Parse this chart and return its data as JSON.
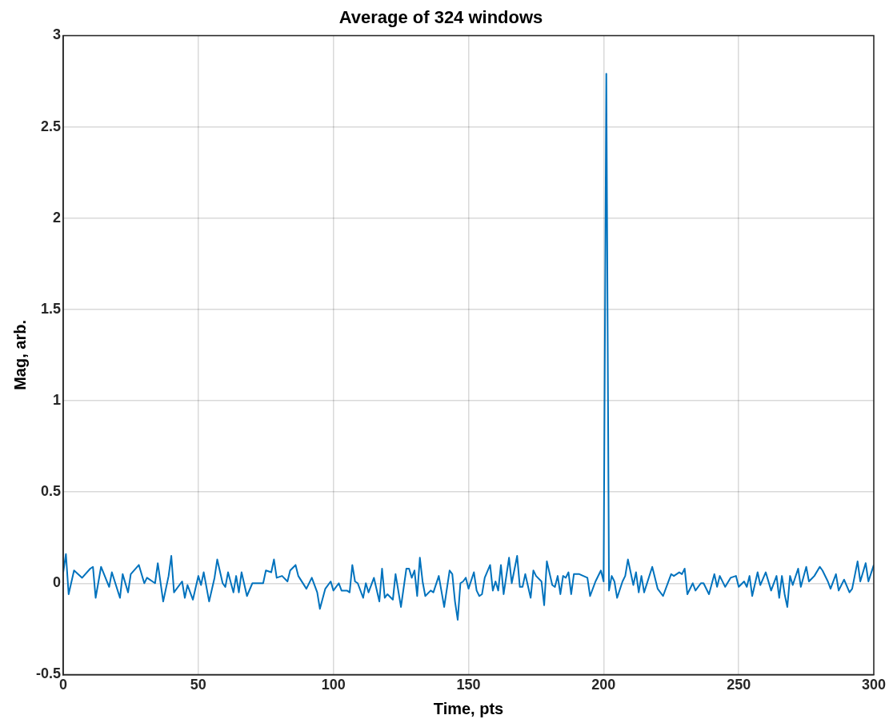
{
  "chart_data": {
    "type": "line",
    "title": "Average of 324 windows",
    "xlabel": "Time, pts",
    "ylabel": "Mag, arb.",
    "x": [
      0,
      1,
      2,
      4,
      7,
      10,
      11,
      12,
      14,
      17,
      18,
      21,
      22,
      24,
      25,
      28,
      30,
      31,
      34,
      35,
      37,
      39,
      40,
      41,
      44,
      45,
      46,
      48,
      50,
      51,
      52,
      54,
      56,
      57,
      59,
      60,
      61,
      63,
      64,
      65,
      66,
      68,
      70,
      74,
      75,
      77,
      78,
      79,
      81,
      83,
      84,
      86,
      87,
      90,
      92,
      94,
      95,
      97,
      99,
      100,
      102,
      103,
      105,
      106,
      107,
      108,
      109,
      111,
      112,
      113,
      115,
      117,
      118,
      119,
      120,
      122,
      123,
      125,
      127,
      128,
      129,
      130,
      131,
      132,
      133,
      134,
      136,
      137,
      139,
      141,
      143,
      144,
      145,
      146,
      147,
      148,
      149,
      150,
      152,
      153,
      154,
      155,
      156,
      158,
      159,
      160,
      161,
      162,
      163,
      165,
      166,
      168,
      169,
      170,
      171,
      173,
      174,
      175,
      177,
      178,
      179,
      181,
      182,
      183,
      184,
      185,
      186,
      187,
      188,
      189,
      191,
      194,
      195,
      197,
      199,
      200,
      201,
      202,
      203,
      204,
      205,
      207,
      208,
      209,
      211,
      212,
      213,
      214,
      215,
      218,
      220,
      222,
      225,
      226,
      228,
      229,
      230,
      231,
      233,
      234,
      236,
      237,
      239,
      241,
      242,
      243,
      245,
      247,
      249,
      250,
      252,
      253,
      254,
      255,
      257,
      258,
      260,
      262,
      264,
      265,
      266,
      267,
      268,
      269,
      270,
      272,
      273,
      275,
      276,
      278,
      280,
      281,
      283,
      284,
      286,
      287,
      289,
      291,
      292,
      294,
      295,
      297,
      298,
      300
    ],
    "values": [
      0.06,
      0.16,
      -0.06,
      0.07,
      0.03,
      0.08,
      0.09,
      -0.08,
      0.09,
      -0.02,
      0.06,
      -0.08,
      0.05,
      -0.05,
      0.05,
      0.1,
      0,
      0.03,
      0,
      0.11,
      -0.1,
      0.04,
      0.15,
      -0.05,
      0.01,
      -0.08,
      -0.01,
      -0.09,
      0.04,
      -0.01,
      0.06,
      -0.1,
      0.03,
      0.13,
      0,
      -0.02,
      0.06,
      -0.05,
      0.04,
      -0.05,
      0.06,
      -0.07,
      0,
      0,
      0.07,
      0.06,
      0.13,
      0.03,
      0.04,
      0.01,
      0.07,
      0.1,
      0.04,
      -0.03,
      0.03,
      -0.05,
      -0.14,
      -0.03,
      0.01,
      -0.04,
      0,
      -0.04,
      -0.04,
      -0.05,
      0.1,
      0.01,
      0,
      -0.08,
      0,
      -0.05,
      0.03,
      -0.1,
      0.08,
      -0.08,
      -0.06,
      -0.09,
      0.05,
      -0.13,
      0.08,
      0.08,
      0.03,
      0.07,
      -0.07,
      0.14,
      0.01,
      -0.07,
      -0.04,
      -0.05,
      0.04,
      -0.13,
      0.07,
      0.05,
      -0.1,
      -0.2,
      0,
      0.01,
      0.03,
      -0.03,
      0.06,
      -0.04,
      -0.07,
      -0.06,
      0.03,
      0.1,
      -0.04,
      0.01,
      -0.04,
      0.1,
      -0.06,
      0.14,
      0,
      0.15,
      -0.02,
      -0.02,
      0.05,
      -0.08,
      0.07,
      0.04,
      0.01,
      -0.12,
      0.12,
      -0.01,
      -0.02,
      0.04,
      -0.06,
      0.04,
      0.03,
      0.06,
      -0.06,
      0.05,
      0.05,
      0.03,
      -0.07,
      0.01,
      0.07,
      0.01,
      2.79,
      -0.04,
      0.04,
      0.01,
      -0.08,
      0.01,
      0.04,
      0.13,
      -0.01,
      0.06,
      -0.05,
      0.04,
      -0.05,
      0.09,
      -0.03,
      -0.07,
      0.05,
      0.04,
      0.06,
      0.05,
      0.08,
      -0.06,
      0,
      -0.04,
      0,
      0,
      -0.06,
      0.05,
      -0.02,
      0.04,
      -0.02,
      0.03,
      0.04,
      -0.02,
      0.01,
      -0.02,
      0.04,
      -0.07,
      0.06,
      -0.01,
      0.06,
      -0.04,
      0.04,
      -0.08,
      0.04,
      -0.06,
      -0.13,
      0.04,
      -0.01,
      0.08,
      -0.02,
      0.09,
      0.01,
      0.04,
      0.09,
      0.07,
      0.01,
      -0.03,
      0.05,
      -0.04,
      0.02,
      -0.05,
      -0.03,
      0.12,
      0.01,
      0.11,
      0.01,
      0.1
    ],
    "color": "#0072bd",
    "xlim": [
      0,
      300
    ],
    "xticks": [
      0,
      50,
      100,
      150,
      200,
      250,
      300
    ],
    "ylim": [
      -0.5,
      3
    ],
    "yticks": [
      -0.5,
      0,
      0.5,
      1,
      1.5,
      2,
      2.5,
      3
    ],
    "grid": true
  }
}
